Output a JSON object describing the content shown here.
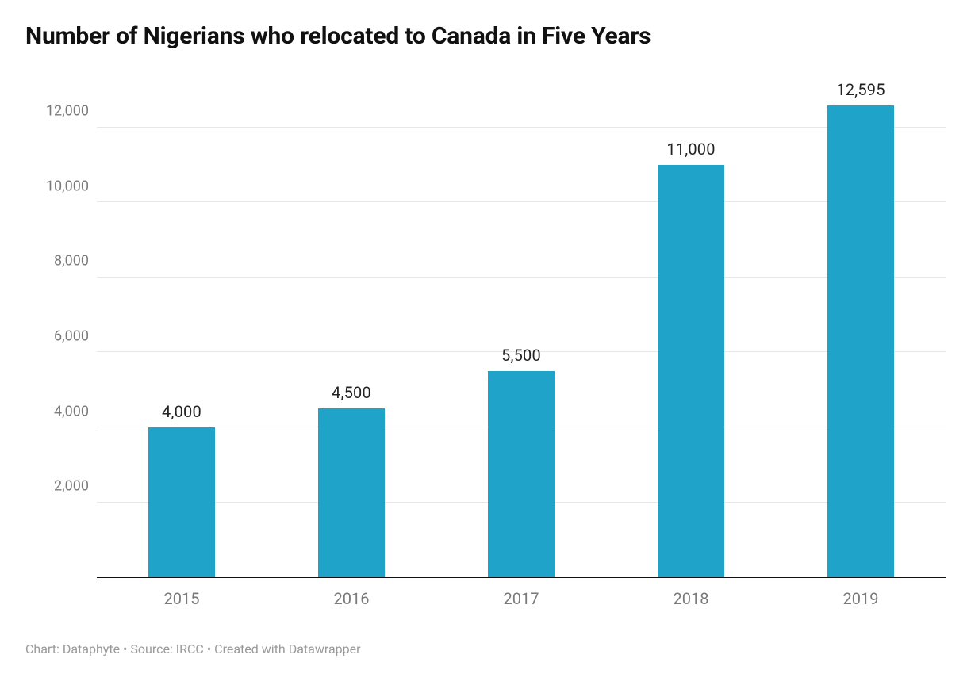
{
  "title": "Number of Nigerians who relocated to Canada in Five Years",
  "chart": {
    "type": "bar",
    "categories": [
      "2015",
      "2016",
      "2017",
      "2018",
      "2019"
    ],
    "values": [
      4000,
      4500,
      5500,
      11000,
      12595
    ],
    "value_labels": [
      "4,000",
      "4,500",
      "5,500",
      "11,000",
      "12,595"
    ],
    "bar_color": "#1fa3c9",
    "background_color": "#ffffff",
    "grid_color": "#e7e7e7",
    "axis_color": "#111111",
    "tick_color": "#7a7a7a",
    "ylim": [
      0,
      13480
    ],
    "ytick_step": 2000,
    "yticks": [
      2000,
      4000,
      6000,
      8000,
      10000,
      12000
    ],
    "ytick_labels": [
      "2,000",
      "4,000",
      "6,000",
      "8,000",
      "10,000",
      "12,000"
    ],
    "bar_width_ratio": 0.39,
    "title_fontsize": 30,
    "title_fontweight": 700,
    "title_color": "#111111",
    "value_label_fontsize": 20,
    "value_label_color": "#222222",
    "tick_fontsize": 18,
    "xtick_fontsize": 20
  },
  "footer": "Chart: Dataphyte • Source: IRCC • Created with Datawrapper",
  "footer_color": "#9a9a9a",
  "footer_fontsize": 16
}
